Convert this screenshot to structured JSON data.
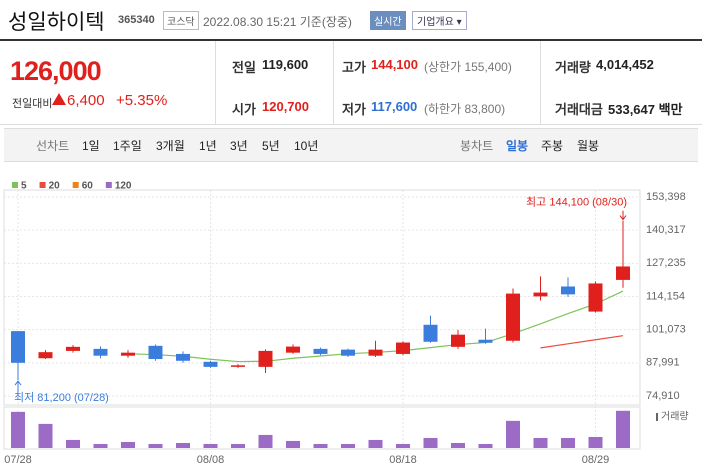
{
  "header": {
    "title": "성일하이텍",
    "code": "365340",
    "market": "코스닥",
    "datetime": "2022.08.30 15:21",
    "status": "기준(장중)",
    "realtime": "실시간",
    "menu": "기업개요"
  },
  "price": {
    "current": "126,000",
    "change_label": "전일대비",
    "change": "6,400",
    "rate": "+5.35%"
  },
  "quote": {
    "rows": [
      [
        {
          "label": "전일",
          "value": "119,600"
        },
        {
          "label": "고가",
          "value": "144,100",
          "note": "(상한가 155,400)"
        },
        {
          "label": "거래량",
          "value": "4,014,452"
        }
      ],
      [
        {
          "label": "시가",
          "value": "120,700"
        },
        {
          "label": "저가",
          "value": "117,600",
          "note": "(하한가 83,800)"
        },
        {
          "label": "거래대금",
          "value": "533,647 백만"
        }
      ]
    ]
  },
  "tabs": {
    "line_label": "선차트",
    "line": [
      "1일",
      "1주일",
      "3개월",
      "1년",
      "3년",
      "5년",
      "10년"
    ],
    "candle_label": "봉차트",
    "candle": [
      "일봉",
      "주봉",
      "월봉"
    ]
  },
  "chart_data": {
    "type": "candlestick",
    "categories": [
      "07/28",
      null,
      null,
      null,
      null,
      null,
      null,
      "08/08",
      null,
      null,
      null,
      null,
      null,
      null,
      "08/18",
      null,
      null,
      null,
      null,
      null,
      null,
      "08/29",
      null
    ],
    "open": [
      100500,
      89800,
      92700,
      93500,
      90800,
      94700,
      91500,
      88400,
      86400,
      86400,
      92000,
      93500,
      93200,
      90800,
      91500,
      103000,
      94300,
      97100,
      96700,
      114200,
      118100,
      108200,
      120700
    ],
    "high": [
      100500,
      93000,
      95000,
      94500,
      93000,
      95200,
      92500,
      88800,
      87500,
      93300,
      95200,
      94000,
      93600,
      96700,
      96500,
      106600,
      101000,
      101500,
      117300,
      122100,
      121700,
      120100,
      144100
    ],
    "low": [
      81200,
      89500,
      92000,
      89800,
      90000,
      88800,
      88000,
      86000,
      86000,
      84000,
      91500,
      91000,
      90300,
      90300,
      91000,
      95900,
      93500,
      95500,
      96000,
      112600,
      114000,
      107800,
      117600
    ],
    "close": [
      88000,
      92200,
      94300,
      90800,
      92000,
      89500,
      88800,
      86400,
      87000,
      92700,
      94400,
      91500,
      90800,
      93200,
      96000,
      96300,
      99100,
      95900,
      115300,
      115700,
      115000,
      119300,
      126000
    ],
    "up_color": "#e0201c",
    "down_color": "#3b7ddd",
    "ylim": [
      74910,
      153398
    ],
    "yticks": [
      {
        "value": 153398,
        "label": "153,398"
      },
      {
        "value": 140317,
        "label": "140,317"
      },
      {
        "value": 127235,
        "label": "127,235"
      },
      {
        "value": 114154,
        "label": "114,154"
      },
      {
        "value": 101073,
        "label": "101,073"
      },
      {
        "value": 87991,
        "label": "87,991"
      },
      {
        "value": 74910,
        "label": "74,910"
      }
    ],
    "grid": true,
    "series": [
      {
        "name": "5",
        "color": "#7cc35a",
        "values": [
          null,
          null,
          null,
          null,
          91600,
          91200,
          90600,
          89400,
          88500,
          88600,
          89800,
          90700,
          91600,
          92100,
          92800,
          94000,
          95200,
          96000,
          99500,
          103400,
          107400,
          111200,
          116300
        ]
      },
      {
        "name": "20",
        "color": "#e84c3d",
        "values": [
          null,
          null,
          null,
          null,
          null,
          null,
          null,
          null,
          null,
          null,
          null,
          null,
          null,
          null,
          null,
          null,
          null,
          null,
          null,
          93900,
          95500,
          97100,
          98700
        ]
      },
      {
        "name": "60",
        "color": "#f0821e",
        "values": [
          null,
          null,
          null,
          null,
          null,
          null,
          null,
          null,
          null,
          null,
          null,
          null,
          null,
          null,
          null,
          null,
          null,
          null,
          null,
          null,
          null,
          null,
          null
        ]
      },
      {
        "name": "120",
        "color": "#9a6ac5",
        "values": [
          null,
          null,
          null,
          null,
          null,
          null,
          null,
          null,
          null,
          null,
          null,
          null,
          null,
          null,
          null,
          null,
          null,
          null,
          null,
          null,
          null,
          null,
          null
        ]
      }
    ],
    "volume": {
      "name": "거래량",
      "color": "#9b6bc6",
      "values": [
        3900000,
        2600000,
        870000,
        430000,
        650000,
        430000,
        540000,
        430000,
        430000,
        1410000,
        760000,
        430000,
        430000,
        870000,
        430000,
        1080000,
        540000,
        430000,
        2930000,
        1080000,
        1080000,
        1190000,
        4014452
      ]
    },
    "volume_ylim": [
      0,
      4100000
    ],
    "annotations": {
      "high": "최고 144,100 (08/30)",
      "low": "최저 81,200 (07/28)"
    }
  }
}
